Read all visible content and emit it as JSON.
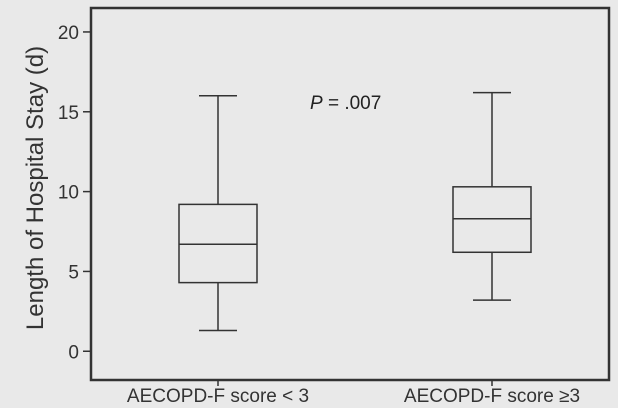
{
  "chart_data": {
    "type": "box",
    "title": "",
    "xlabel": "",
    "ylabel": "Length of Hospital Stay (d)",
    "ylim": [
      -1.8,
      21.5
    ],
    "yticks": [
      0,
      5,
      10,
      15,
      20
    ],
    "categories": [
      "AECOPD-F score < 3",
      "AECOPD-F score ≥3"
    ],
    "boxes": [
      {
        "category": "AECOPD-F score < 3",
        "min": 1.3,
        "q1": 4.3,
        "median": 6.7,
        "q3": 9.2,
        "max": 16.0
      },
      {
        "category": "AECOPD-F score ≥3",
        "min": 3.2,
        "q1": 6.2,
        "median": 8.3,
        "q3": 10.3,
        "max": 16.2
      }
    ],
    "annotation": {
      "p_symbol": "P",
      "p_value": " = .007"
    },
    "grid": false,
    "legend": "none"
  },
  "colors": {
    "background": "#e9e9e9",
    "stroke": "#333333"
  }
}
